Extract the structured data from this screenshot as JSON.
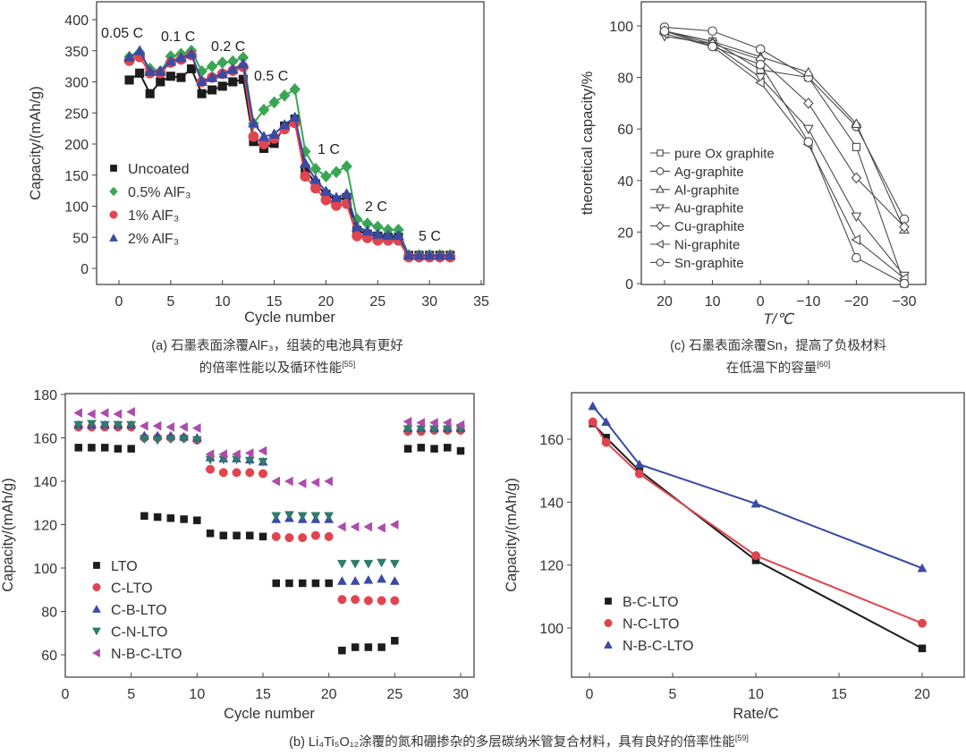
{
  "colors": {
    "black": "#1c1c1c",
    "green": "#3aa655",
    "red": "#e0454f",
    "blue": "#3b4aa3",
    "teal": "#2f7c6c",
    "purple": "#ae4cab",
    "gray": "#4a4a4a"
  },
  "captions": {
    "a_line1": "(a) 石墨表面涂覆AlF₃，组装的电池具有更好",
    "a_line2": "的倍率性能以及循环性能",
    "a_ref": "[55]",
    "c_line1": "(c) 石墨表面涂覆Sn，提高了负极材料",
    "c_line2": "在低温下的容量",
    "c_ref": "[60]",
    "b_line": "(b) Li₄Ti₅O₁₂涂覆的氮和硼掺杂的多层碳纳米管复合材料，具有良好的倍率性能",
    "b_ref": "[59]"
  },
  "chart_data": [
    {
      "id": "a",
      "type": "line",
      "xlabel": "Cycle number",
      "ylabel": "Capacity/(mAh/g)",
      "xlim": [
        0,
        35
      ],
      "ylim": [
        0,
        400
      ],
      "xticks": [
        "0",
        "5",
        "10",
        "15",
        "20",
        "25",
        "30",
        "35"
      ],
      "yticks": [
        "0",
        "50",
        "100",
        "150",
        "200",
        "250",
        "300",
        "350",
        "400"
      ],
      "legend": "middle-left",
      "annotations": [
        "0.05 C",
        "0.1 C",
        "0.2 C",
        "0.5 C",
        "1 C",
        "2 C",
        "5 C"
      ],
      "x": [
        1,
        2,
        3,
        4,
        5,
        6,
        7,
        8,
        9,
        10,
        11,
        12,
        13,
        14,
        15,
        16,
        17,
        18,
        19,
        20,
        21,
        22,
        23,
        24,
        25,
        26,
        27,
        28,
        29,
        30,
        31,
        32
      ],
      "series": [
        {
          "name": "Uncoated",
          "marker": "square",
          "color": "black",
          "values": [
            303,
            314,
            281,
            300,
            309,
            307,
            321,
            281,
            287,
            293,
            300,
            304,
            204,
            193,
            201,
            229,
            240,
            160,
            136,
            119,
            110,
            114,
            61,
            55,
            52,
            50,
            50,
            21,
            21,
            21,
            21,
            21
          ]
        },
        {
          "name": "0.5% AlF₃",
          "marker": "diamond",
          "color": "green",
          "values": [
            340,
            347,
            321,
            317,
            341,
            345,
            350,
            317,
            325,
            331,
            333,
            339,
            233,
            255,
            267,
            278,
            288,
            188,
            160,
            148,
            155,
            164,
            79,
            72,
            67,
            62,
            62,
            21,
            21,
            21,
            21,
            21
          ]
        },
        {
          "name": "1% AlF₃",
          "marker": "circle",
          "color": "red",
          "values": [
            334,
            340,
            314,
            314,
            331,
            336,
            343,
            300,
            307,
            313,
            318,
            324,
            212,
            200,
            209,
            224,
            234,
            148,
            129,
            110,
            101,
            104,
            52,
            49,
            45,
            45,
            45,
            18,
            18,
            18,
            18,
            18
          ]
        },
        {
          "name": "2% AlF₃",
          "marker": "triangle-up",
          "color": "blue",
          "values": [
            340,
            350,
            317,
            317,
            333,
            339,
            345,
            301,
            307,
            313,
            320,
            329,
            234,
            212,
            216,
            231,
            243,
            169,
            143,
            124,
            114,
            120,
            67,
            60,
            55,
            53,
            53,
            21,
            21,
            21,
            21,
            21
          ]
        }
      ]
    },
    {
      "id": "c",
      "type": "line",
      "xlabel": "T/℃",
      "ylabel": "theoretical capacity/%",
      "xlim": [
        20,
        -30
      ],
      "ylim": [
        0,
        100
      ],
      "xticks": [
        "20",
        "10",
        "0",
        "−10",
        "−20",
        "−30"
      ],
      "yticks": [
        "0",
        "20",
        "40",
        "60",
        "80",
        "100"
      ],
      "legend": "lower-left",
      "x": [
        20,
        10,
        0,
        -10,
        -20,
        -30
      ],
      "series": [
        {
          "name": "pure Ox graphite",
          "marker": "square-open",
          "color": "gray",
          "values": [
            98,
            94,
            83,
            80,
            53,
            0
          ]
        },
        {
          "name": "Ag-graphite",
          "marker": "circle-open",
          "color": "gray",
          "values": [
            99.5,
            98,
            91,
            80,
            61,
            25
          ]
        },
        {
          "name": "Al-graphite",
          "marker": "triangle-up-open",
          "color": "gray",
          "values": [
            98,
            94,
            88,
            82,
            62,
            21
          ]
        },
        {
          "name": "Au-graphite",
          "marker": "triangle-down-open",
          "color": "gray",
          "values": [
            96,
            93,
            80,
            60,
            26,
            3
          ]
        },
        {
          "name": "Cu-graphite",
          "marker": "diamond-open",
          "color": "gray",
          "values": [
            98,
            93,
            87,
            70,
            41,
            22
          ]
        },
        {
          "name": "Ni-graphite",
          "marker": "triangle-left-open",
          "color": "gray",
          "values": [
            97,
            92,
            78,
            54,
            17,
            2
          ]
        },
        {
          "name": "Sn-graphite",
          "marker": "circle-open",
          "color": "gray",
          "values": [
            98,
            92,
            85,
            55,
            10,
            0
          ]
        }
      ]
    },
    {
      "id": "b1",
      "type": "scatter",
      "xlabel": "Cycle number",
      "ylabel": "Capacity/(mAh/g)",
      "xlim": [
        0,
        30
      ],
      "ylim": [
        60,
        180
      ],
      "xticks": [
        "0",
        "5",
        "10",
        "15",
        "20",
        "25",
        "30"
      ],
      "yticks": [
        "60",
        "80",
        "100",
        "120",
        "140",
        "160",
        "180"
      ],
      "legend": "lower-left",
      "x": [
        1,
        2,
        3,
        4,
        5,
        6,
        7,
        8,
        9,
        10,
        11,
        12,
        13,
        14,
        15,
        16,
        17,
        18,
        19,
        20,
        21,
        22,
        23,
        24,
        25,
        26,
        27,
        28,
        29,
        30
      ],
      "series": [
        {
          "name": "LTO",
          "marker": "square",
          "color": "black",
          "values": [
            155.5,
            155.5,
            155.5,
            155,
            155,
            124,
            123.5,
            123,
            122.5,
            122,
            116,
            115,
            115,
            115,
            114.5,
            93,
            93,
            93,
            93,
            93,
            62,
            63.5,
            63.5,
            63.5,
            66.5,
            155,
            155.5,
            155,
            155.5,
            154
          ]
        },
        {
          "name": "C-LTO",
          "marker": "circle",
          "color": "red",
          "values": [
            165,
            165,
            165,
            165,
            165,
            160,
            160,
            160,
            160,
            159,
            145.5,
            144,
            144,
            144,
            143.5,
            114.5,
            114,
            114,
            115,
            114.5,
            85.5,
            85.5,
            85,
            85,
            85,
            163,
            163,
            163.5,
            163.5,
            163.5
          ]
        },
        {
          "name": "C-B-LTO",
          "marker": "triangle-up",
          "color": "blue",
          "values": [
            166,
            166,
            166,
            166,
            166,
            161,
            161,
            161,
            160.5,
            160,
            151,
            150.5,
            150.5,
            150,
            149,
            122.5,
            123,
            122.5,
            122.5,
            122.5,
            94,
            94,
            94.5,
            95,
            94,
            164.5,
            164.5,
            164.5,
            164.5,
            164.5
          ]
        },
        {
          "name": "C-N-LTO",
          "marker": "triangle-down",
          "color": "teal",
          "values": [
            166,
            166.5,
            166,
            166,
            166,
            159.5,
            159,
            159.5,
            159.5,
            159,
            150,
            150,
            150,
            149.5,
            149,
            124,
            124.5,
            124,
            124,
            124,
            102,
            102,
            102,
            102.5,
            102,
            164,
            164,
            164,
            164,
            164
          ]
        },
        {
          "name": "N-B-C-LTO",
          "marker": "triangle-left",
          "color": "purple",
          "values": [
            171.5,
            171,
            171.5,
            171,
            172,
            165.5,
            165.5,
            165,
            165,
            164.5,
            152.5,
            152.5,
            152.5,
            153,
            154,
            140,
            140,
            139,
            139.5,
            140,
            119,
            119,
            119,
            118.5,
            120,
            167.5,
            167,
            167,
            167,
            166
          ]
        }
      ]
    },
    {
      "id": "b2",
      "type": "line",
      "xlabel": "Rate/C",
      "ylabel": "Capacity/(mAh/g)",
      "xlim": [
        0,
        20
      ],
      "ylim": [
        100,
        160
      ],
      "xticks": [
        "0",
        "5",
        "10",
        "15",
        "20"
      ],
      "yticks": [
        "100",
        "120",
        "140",
        "160"
      ],
      "legend": "lower-left",
      "x": [
        0.2,
        1,
        3,
        10,
        20
      ],
      "series": [
        {
          "name": "B-C-LTO",
          "marker": "square",
          "color": "black",
          "values": [
            165,
            160.5,
            150,
            121.5,
            93.5
          ]
        },
        {
          "name": "N-C-LTO",
          "marker": "circle",
          "color": "red",
          "values": [
            165.5,
            159,
            149,
            123,
            101.5
          ]
        },
        {
          "name": "N-B-C-LTO",
          "marker": "triangle-up",
          "color": "blue",
          "values": [
            170.5,
            165.5,
            152,
            139.5,
            119
          ]
        }
      ]
    }
  ]
}
